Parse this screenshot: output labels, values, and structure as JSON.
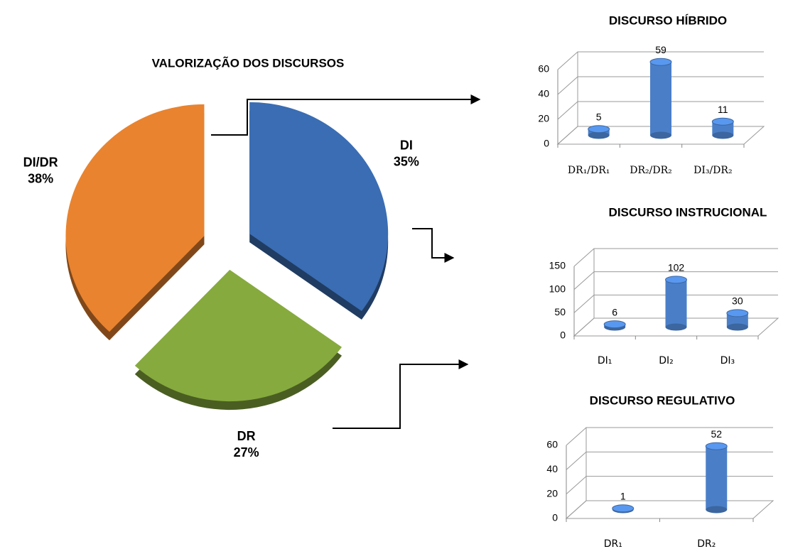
{
  "chart_data": [
    {
      "type": "pie",
      "title": "VALORIZAÇÃO DOS DISCURSOS",
      "categories": [
        "DI",
        "DR",
        "DI/DR"
      ],
      "values": [
        35,
        27,
        38
      ],
      "value_labels": [
        "35%",
        "27%",
        "38%"
      ],
      "colors": [
        "#3a6db3",
        "#86aa3e",
        "#e9832f"
      ]
    },
    {
      "type": "bar",
      "title": "DISCURSO  HÍBRIDO",
      "categories": [
        "DR₁/DR₁",
        "DR₂/DR₂",
        "DI₃/DR₂"
      ],
      "values": [
        5,
        59,
        11
      ],
      "color": "#4a7fc8",
      "ylim": [
        0,
        60
      ],
      "yticks": [
        0,
        20,
        40,
        60
      ],
      "grid": true
    },
    {
      "type": "bar",
      "title": "DISCURSO INSTRUCIONAL",
      "categories": [
        "DI₁",
        "DI₂",
        "DI₃"
      ],
      "values": [
        6,
        102,
        30
      ],
      "color": "#4a7fc8",
      "ylim": [
        0,
        150
      ],
      "yticks": [
        0,
        50,
        100,
        150
      ],
      "grid": true
    },
    {
      "type": "bar",
      "title": "DISCURSO REGULATIVO",
      "categories": [
        "DR₁",
        "DR₂"
      ],
      "values": [
        1,
        52
      ],
      "color": "#4a7fc8",
      "ylim": [
        0,
        60
      ],
      "yticks": [
        0,
        20,
        40,
        60
      ],
      "grid": true
    }
  ]
}
